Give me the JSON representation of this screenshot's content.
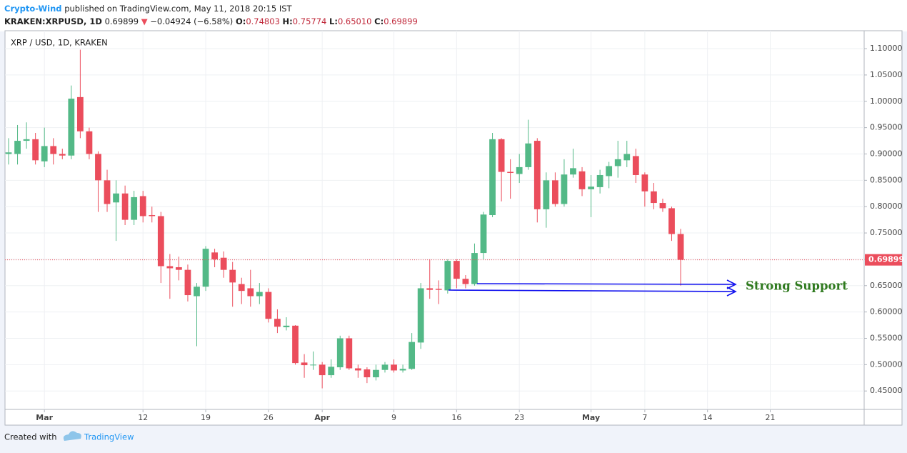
{
  "header": {
    "author": "Crypto-Wind",
    "published": "published on TradingView.com, May 11, 2018 20:15 IST",
    "symbol": "KRAKEN:XRPUSD, 1D",
    "last": "0.69899",
    "change": "−0.04924 (−6.58%)",
    "o_label": "O:",
    "o": "0.74803",
    "h_label": "H:",
    "h": "0.75774",
    "l_label": "L:",
    "l": "0.65010",
    "c_label": "C:",
    "c": "0.69899"
  },
  "chart_data": {
    "type": "candlestick",
    "title": "XRP / USD, 1D, KRAKEN",
    "x": [
      "2018-02-25",
      "2018-02-26",
      "2018-02-27",
      "2018-02-28",
      "2018-03-01",
      "2018-03-02",
      "2018-03-03",
      "2018-03-04",
      "2018-03-05",
      "2018-03-06",
      "2018-03-07",
      "2018-03-08",
      "2018-03-09",
      "2018-03-10",
      "2018-03-11",
      "2018-03-12",
      "2018-03-13",
      "2018-03-14",
      "2018-03-15",
      "2018-03-16",
      "2018-03-17",
      "2018-03-18",
      "2018-03-19",
      "2018-03-20",
      "2018-03-21",
      "2018-03-22",
      "2018-03-23",
      "2018-03-24",
      "2018-03-25",
      "2018-03-26",
      "2018-03-27",
      "2018-03-28",
      "2018-03-29",
      "2018-03-30",
      "2018-03-31",
      "2018-04-01",
      "2018-04-02",
      "2018-04-03",
      "2018-04-04",
      "2018-04-05",
      "2018-04-06",
      "2018-04-07",
      "2018-04-08",
      "2018-04-09",
      "2018-04-10",
      "2018-04-11",
      "2018-04-12",
      "2018-04-13",
      "2018-04-14",
      "2018-04-15",
      "2018-04-16",
      "2018-04-17",
      "2018-04-18",
      "2018-04-19",
      "2018-04-20",
      "2018-04-21",
      "2018-04-22",
      "2018-04-23",
      "2018-04-24",
      "2018-04-25",
      "2018-04-26",
      "2018-04-27",
      "2018-04-28",
      "2018-04-29",
      "2018-04-30",
      "2018-05-01",
      "2018-05-02",
      "2018-05-03",
      "2018-05-04",
      "2018-05-05",
      "2018-05-06",
      "2018-05-07",
      "2018-05-08",
      "2018-05-09",
      "2018-05-10",
      "2018-05-11"
    ],
    "open": [
      0.9,
      0.9,
      0.925,
      0.928,
      0.886,
      0.915,
      0.9,
      0.897,
      1.008,
      0.943,
      0.9,
      0.85,
      0.808,
      0.825,
      0.775,
      0.82,
      0.784,
      0.782,
      0.687,
      0.685,
      0.68,
      0.63,
      0.648,
      0.713,
      0.703,
      0.68,
      0.653,
      0.645,
      0.63,
      0.638,
      0.587,
      0.571,
      0.574,
      0.504,
      0.499,
      0.5,
      0.48,
      0.495,
      0.55,
      0.493,
      0.491,
      0.476,
      0.49,
      0.5,
      0.489,
      0.492,
      0.542,
      0.645,
      0.644,
      0.641,
      0.697,
      0.663,
      0.653,
      0.712,
      0.784,
      0.928,
      0.866,
      0.862,
      0.875,
      0.925,
      0.795,
      0.85,
      0.805,
      0.861,
      0.867,
      0.833,
      0.837,
      0.858,
      0.877,
      0.888,
      0.896,
      0.861,
      0.829,
      0.807,
      0.797,
      0.74803
    ],
    "high": [
      0.93,
      0.955,
      0.96,
      0.94,
      0.95,
      0.93,
      0.91,
      1.03,
      1.098,
      0.95,
      0.905,
      0.87,
      0.85,
      0.84,
      0.83,
      0.83,
      0.8,
      0.79,
      0.71,
      0.705,
      0.69,
      0.655,
      0.725,
      0.72,
      0.715,
      0.695,
      0.665,
      0.68,
      0.655,
      0.645,
      0.605,
      0.59,
      0.575,
      0.52,
      0.525,
      0.505,
      0.51,
      0.555,
      0.555,
      0.5,
      0.495,
      0.5,
      0.505,
      0.51,
      0.5,
      0.56,
      0.655,
      0.7,
      0.66,
      0.7,
      0.7,
      0.67,
      0.73,
      0.79,
      0.94,
      0.93,
      0.89,
      0.9,
      0.965,
      0.93,
      0.865,
      0.865,
      0.89,
      0.91,
      0.875,
      0.86,
      0.87,
      0.885,
      0.925,
      0.925,
      0.91,
      0.865,
      0.845,
      0.815,
      0.8,
      0.75774
    ],
    "low": [
      0.88,
      0.88,
      0.91,
      0.88,
      0.875,
      0.88,
      0.89,
      0.89,
      0.93,
      0.89,
      0.79,
      0.79,
      0.735,
      0.765,
      0.765,
      0.77,
      0.77,
      0.655,
      0.625,
      0.66,
      0.62,
      0.535,
      0.64,
      0.685,
      0.665,
      0.61,
      0.615,
      0.61,
      0.615,
      0.58,
      0.56,
      0.565,
      0.5,
      0.475,
      0.49,
      0.455,
      0.475,
      0.49,
      0.49,
      0.475,
      0.465,
      0.47,
      0.485,
      0.485,
      0.485,
      0.49,
      0.53,
      0.625,
      0.615,
      0.635,
      0.645,
      0.645,
      0.65,
      0.7,
      0.78,
      0.81,
      0.815,
      0.845,
      0.87,
      0.77,
      0.76,
      0.8,
      0.8,
      0.855,
      0.82,
      0.78,
      0.825,
      0.835,
      0.855,
      0.875,
      0.845,
      0.8,
      0.795,
      0.79,
      0.735,
      0.6501
    ],
    "close": [
      0.903,
      0.925,
      0.928,
      0.888,
      0.915,
      0.9,
      0.897,
      1.005,
      0.943,
      0.9,
      0.85,
      0.805,
      0.825,
      0.775,
      0.818,
      0.782,
      0.782,
      0.687,
      0.683,
      0.68,
      0.632,
      0.648,
      0.72,
      0.7,
      0.68,
      0.656,
      0.64,
      0.63,
      0.638,
      0.587,
      0.572,
      0.574,
      0.503,
      0.499,
      0.5,
      0.48,
      0.496,
      0.55,
      0.493,
      0.489,
      0.476,
      0.49,
      0.5,
      0.489,
      0.492,
      0.543,
      0.645,
      0.642,
      0.642,
      0.697,
      0.663,
      0.653,
      0.712,
      0.785,
      0.928,
      0.866,
      0.864,
      0.875,
      0.92,
      0.795,
      0.85,
      0.805,
      0.861,
      0.873,
      0.833,
      0.838,
      0.86,
      0.877,
      0.89,
      0.9,
      0.86,
      0.829,
      0.807,
      0.797,
      0.748,
      0.69899
    ],
    "up_color": "#53b987",
    "down_color": "#eb4d5c",
    "xlim": [
      "2018-02-25",
      "2018-05-31"
    ],
    "xticks": [
      {
        "value": "2018-03-01",
        "label": "Mar"
      },
      {
        "value": "2018-03-12",
        "label": "12"
      },
      {
        "value": "2018-03-19",
        "label": "19"
      },
      {
        "value": "2018-03-26",
        "label": "26"
      },
      {
        "value": "2018-04-01",
        "label": "Apr"
      },
      {
        "value": "2018-04-09",
        "label": "9"
      },
      {
        "value": "2018-04-16",
        "label": "16"
      },
      {
        "value": "2018-04-23",
        "label": "23"
      },
      {
        "value": "2018-05-01",
        "label": "May"
      },
      {
        "value": "2018-05-07",
        "label": "7"
      },
      {
        "value": "2018-05-14",
        "label": "14"
      },
      {
        "value": "2018-05-21",
        "label": "21"
      }
    ],
    "ylim": [
      0.415,
      1.134
    ],
    "yticks": [
      {
        "value": 0.45,
        "label": "0.45000"
      },
      {
        "value": 0.5,
        "label": "0.50000"
      },
      {
        "value": 0.55,
        "label": "0.55000"
      },
      {
        "value": 0.6,
        "label": "0.60000"
      },
      {
        "value": 0.65,
        "label": "0.65000"
      },
      {
        "value": 0.7,
        "label": "0.70000"
      },
      {
        "value": 0.75,
        "label": "0.75000"
      },
      {
        "value": 0.8,
        "label": "0.80000"
      },
      {
        "value": 0.85,
        "label": "0.85000"
      },
      {
        "value": 0.9,
        "label": "0.90000"
      },
      {
        "value": 0.95,
        "label": "0.95000"
      },
      {
        "value": 1.0,
        "label": "1.00000"
      },
      {
        "value": 1.05,
        "label": "1.05000"
      },
      {
        "value": 1.1,
        "label": "1.10000"
      }
    ],
    "grid": true,
    "last_price": 0.69899,
    "last_price_color": "#eb4d5c",
    "annotation": "Strong Support"
  },
  "footer": {
    "created": "Created with",
    "brand": "TradingView"
  }
}
